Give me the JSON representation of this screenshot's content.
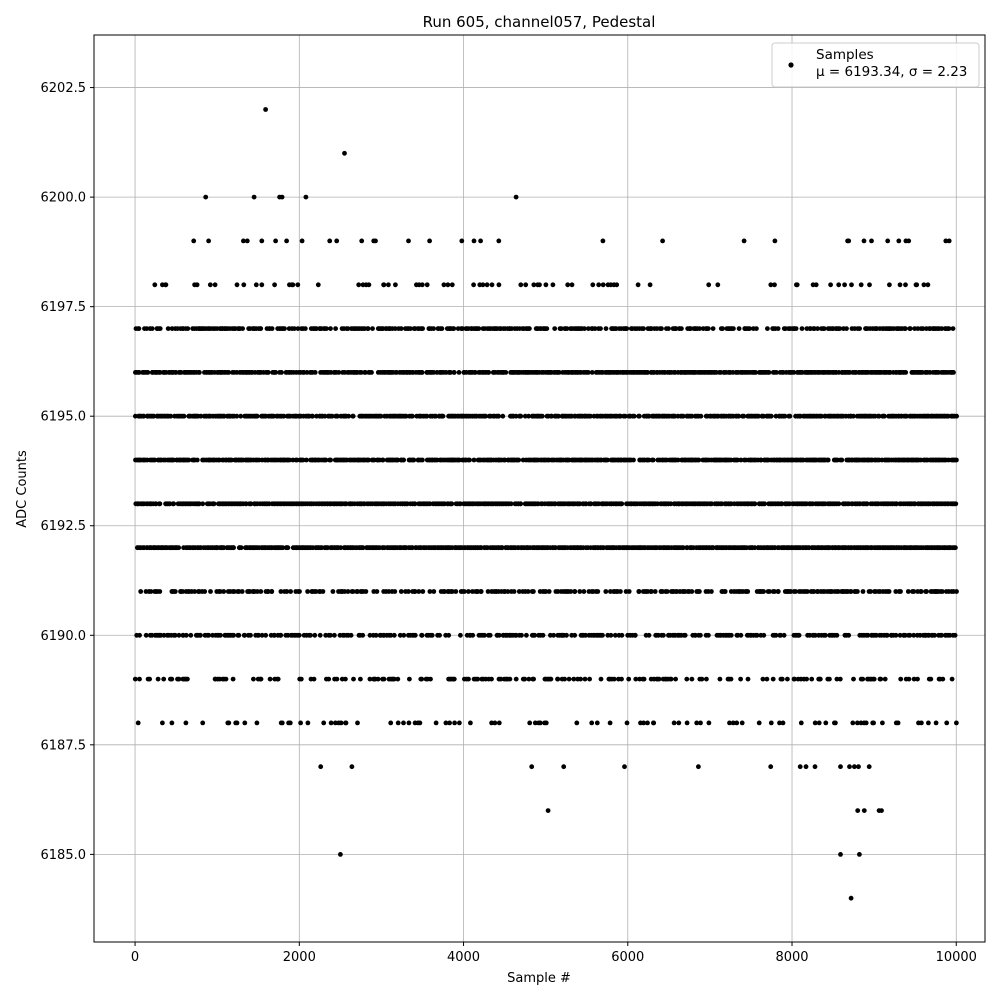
{
  "chart_data": {
    "type": "scatter",
    "title": "Run 605, channel057, Pedestal",
    "xlabel": "Sample #",
    "ylabel": "ADC Counts",
    "xlim": [
      -500,
      10350
    ],
    "ylim": [
      6183.0,
      6203.7
    ],
    "x_ticks": [
      0,
      2000,
      4000,
      6000,
      8000,
      10000
    ],
    "y_ticks": [
      6185.0,
      6187.5,
      6190.0,
      6192.5,
      6195.0,
      6197.5,
      6200.0,
      6202.5
    ],
    "grid": true,
    "legend_position": "top-right",
    "marker_color": "#000000",
    "n_samples": 10000,
    "series": [
      {
        "name": "Samples",
        "legend_stats": "μ = 6193.34, σ = 2.23",
        "mean": 6193.34,
        "sigma": 2.23,
        "levels": [
          {
            "y": 6192,
            "density": 0.85
          },
          {
            "y": 6193,
            "density": 0.8
          },
          {
            "y": 6194,
            "density": 0.78
          },
          {
            "y": 6195,
            "density": 0.7
          },
          {
            "y": 6196,
            "density": 0.74
          },
          {
            "y": 6197,
            "density": 0.55
          },
          {
            "y": 6191,
            "density": 0.45
          },
          {
            "y": 6190,
            "density": 0.47
          },
          {
            "y": 6189,
            "density": 0.28
          },
          {
            "y": 6188,
            "density": 0.14
          },
          {
            "y": 6198,
            "density": 0.12
          },
          {
            "y": 6199,
            "density": 0.04
          }
        ],
        "outliers": [
          {
            "x": 1590,
            "y": 6202
          },
          {
            "x": 2550,
            "y": 6201
          },
          {
            "x": 860,
            "y": 6200
          },
          {
            "x": 1450,
            "y": 6200
          },
          {
            "x": 1760,
            "y": 6200
          },
          {
            "x": 1790,
            "y": 6200
          },
          {
            "x": 2080,
            "y": 6200
          },
          {
            "x": 4640,
            "y": 6200
          },
          {
            "x": 2260,
            "y": 6187
          },
          {
            "x": 2640,
            "y": 6187
          },
          {
            "x": 4830,
            "y": 6187
          },
          {
            "x": 5220,
            "y": 6187
          },
          {
            "x": 5960,
            "y": 6187
          },
          {
            "x": 6860,
            "y": 6187
          },
          {
            "x": 7740,
            "y": 6187
          },
          {
            "x": 8100,
            "y": 6187
          },
          {
            "x": 8170,
            "y": 6187
          },
          {
            "x": 8280,
            "y": 6187
          },
          {
            "x": 8590,
            "y": 6187
          },
          {
            "x": 8700,
            "y": 6187
          },
          {
            "x": 8760,
            "y": 6187
          },
          {
            "x": 8810,
            "y": 6187
          },
          {
            "x": 8940,
            "y": 6187
          },
          {
            "x": 5030,
            "y": 6186
          },
          {
            "x": 8800,
            "y": 6186
          },
          {
            "x": 8880,
            "y": 6186
          },
          {
            "x": 9060,
            "y": 6186
          },
          {
            "x": 9090,
            "y": 6186
          },
          {
            "x": 2500,
            "y": 6185
          },
          {
            "x": 8590,
            "y": 6185
          },
          {
            "x": 8820,
            "y": 6185
          },
          {
            "x": 8720,
            "y": 6184
          }
        ]
      }
    ]
  }
}
